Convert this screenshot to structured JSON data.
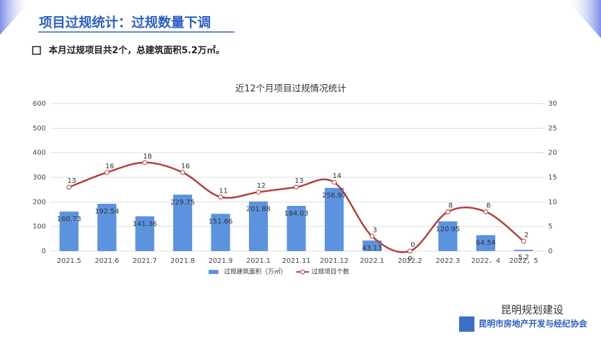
{
  "header": {
    "title": "项目过规统计：过规数量下调",
    "bullet": "本月过规项目共2个，总建筑面积5.2万㎡。"
  },
  "chart_data": {
    "type": "bar",
    "title": "近12个月项目过规情况统计",
    "categories": [
      "2021.5",
      "2021.6",
      "2021.7",
      "2021.8",
      "2021.9",
      "2021.1",
      "2021.11",
      "2021.12",
      "2022.1",
      "2022.2",
      "2022.3",
      "2022．4",
      "2022，5"
    ],
    "series": [
      {
        "name": "过规建筑面积（万㎡）",
        "type": "bar",
        "color": "#5b93de",
        "values": [
          160.73,
          192.54,
          141.36,
          229.75,
          151.66,
          201.88,
          184.03,
          256.97,
          43.13,
          0,
          120.95,
          64.54,
          5.2
        ]
      },
      {
        "name": "过规项目个数",
        "type": "line",
        "axis": "y2",
        "color": "#b0403d",
        "values": [
          13,
          16,
          18,
          16,
          11,
          12,
          13,
          14,
          3,
          0,
          8,
          8,
          2
        ]
      }
    ],
    "ylim": [
      0,
      600
    ],
    "yticks": [
      0,
      100,
      200,
      300,
      400,
      500,
      600
    ],
    "y2lim": [
      0,
      30
    ],
    "y2ticks": [
      0,
      5,
      10,
      15,
      20,
      25,
      30
    ],
    "grid": true,
    "legend": "bottom"
  },
  "footer": {
    "account": "昆明规划建设",
    "org": "昆明市房地产开发与经纪协会"
  }
}
